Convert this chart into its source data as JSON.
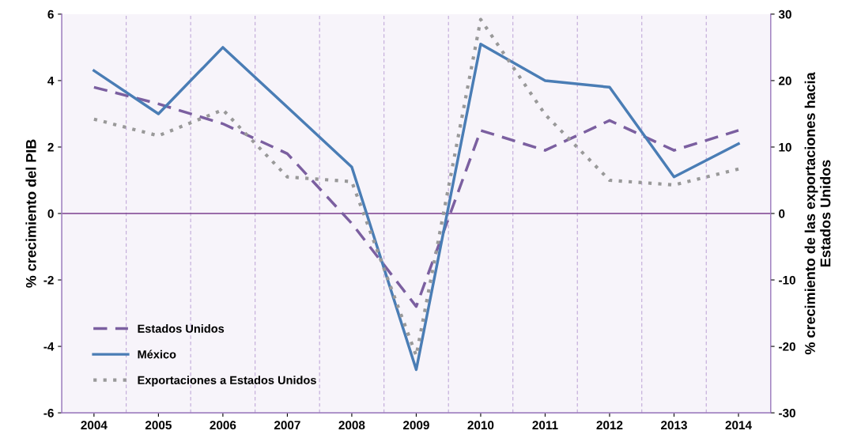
{
  "chart_data": {
    "type": "line",
    "ylabel": "% crecimiento del PIB",
    "y2label": "% crecimiento de las exportaciones hacia\nEstados Unidos",
    "categories": [
      "2004",
      "2005",
      "2006",
      "2007",
      "2008",
      "2009",
      "2010",
      "2011",
      "2012",
      "2013",
      "2014"
    ],
    "series": [
      {
        "name": "Estados Unidos",
        "color": "#7b5fa0",
        "line_style": "dashed",
        "values": [
          3.8,
          3.3,
          2.7,
          1.8,
          -0.3,
          -2.8,
          2.5,
          1.9,
          2.8,
          1.9,
          2.5
        ]
      },
      {
        "name": "México",
        "color": "#4a7db5",
        "line_style": "solid",
        "values": [
          4.3,
          3.0,
          5.0,
          3.2,
          1.4,
          -4.7,
          5.1,
          4.0,
          3.8,
          1.1,
          2.1
        ]
      },
      {
        "name": "Exportaciones a Estados Unidos",
        "color": "#999999",
        "line_style": "dotted",
        "axis": "y2",
        "values": [
          14.2,
          11.7,
          15.6,
          5.5,
          4.8,
          -21.4,
          29.2,
          14.9,
          5.0,
          4.3,
          6.7
        ]
      }
    ],
    "ylim": [
      -6,
      6
    ],
    "yticks": [
      -6,
      -4,
      -2,
      0,
      2,
      4,
      6
    ],
    "y2lim": [
      -30,
      30
    ],
    "y2ticks": [
      -30,
      -20,
      -10,
      0,
      10,
      20,
      30
    ],
    "ref_lines": [
      {
        "axis": "y",
        "value": 0,
        "color": "#7b3f8f"
      }
    ],
    "grid": "x",
    "legend": "bottom left",
    "marker": "none"
  }
}
